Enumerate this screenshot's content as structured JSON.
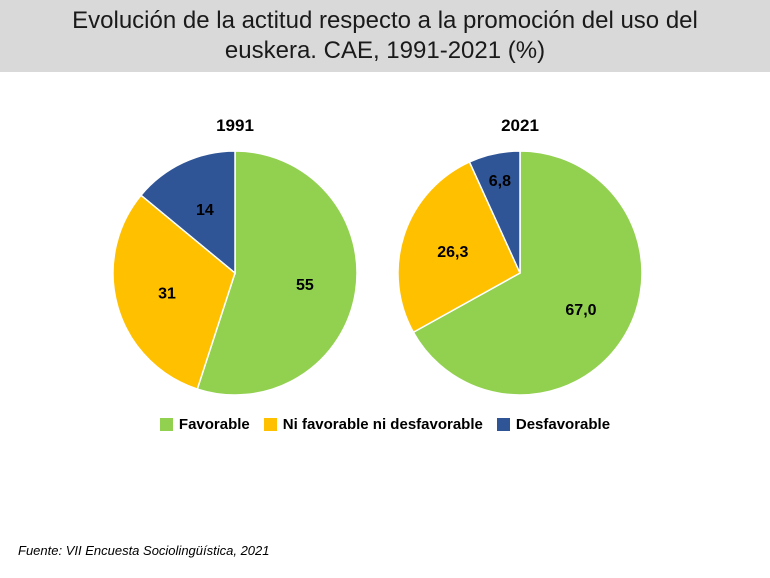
{
  "title": "Evolución de la actitud respecto a la promoción del uso del euskera. CAE, 1991-2021 (%)",
  "source": "Fuente: VII Encuesta Sociolingüística, 2021",
  "colors": {
    "favorable": "#92d050",
    "neutral": "#ffc000",
    "desfavorable": "#2f5597"
  },
  "chart_data": {
    "type": "pie",
    "title": "Evolución de la actitud respecto a la promoción del uso del euskera. CAE, 1991-2021 (%)",
    "categories": [
      "Favorable",
      "Ni favorable ni desfavorable",
      "Desfavorable"
    ],
    "legend": "bottom",
    "charts": [
      {
        "title": "1991",
        "values": [
          55,
          31,
          14
        ],
        "labels": [
          "55",
          "31",
          "14"
        ]
      },
      {
        "title": "2021",
        "values": [
          67.0,
          26.3,
          6.8
        ],
        "labels": [
          "67,0",
          "26,3",
          "6,8"
        ]
      }
    ]
  }
}
